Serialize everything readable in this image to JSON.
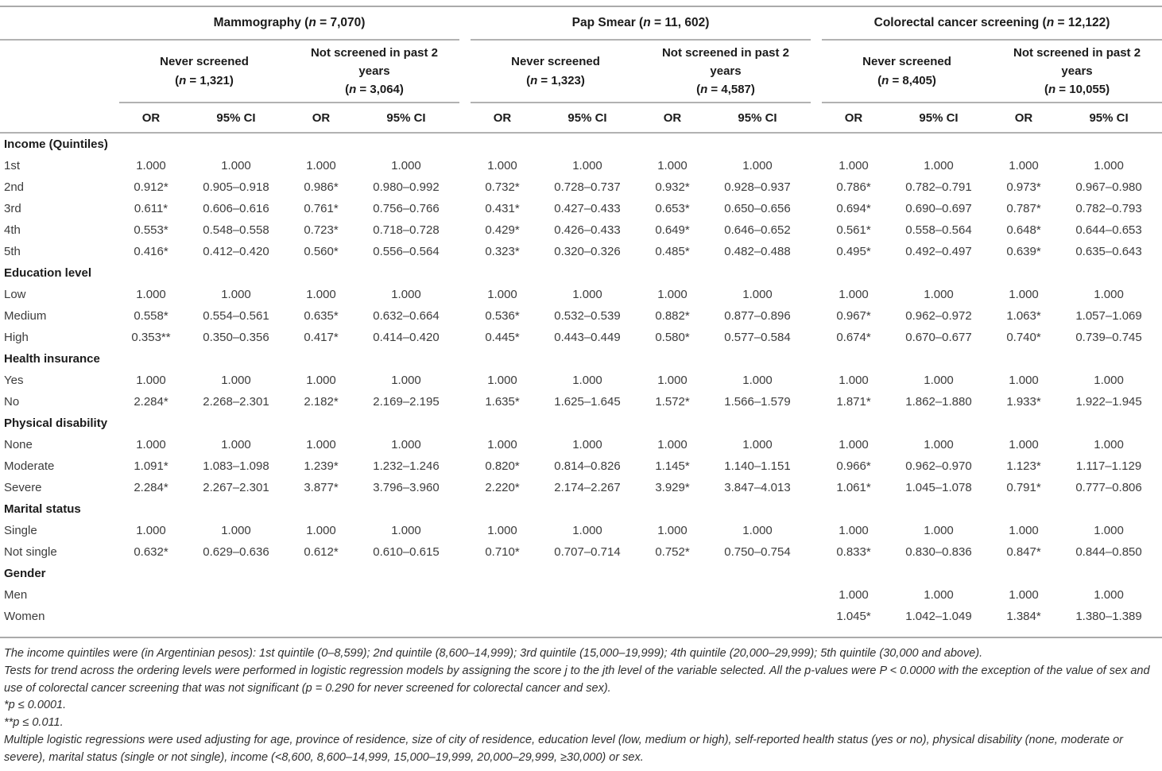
{
  "table": {
    "groups": [
      {
        "title": "Mammography (n = 7,070)",
        "subgroups": [
          {
            "title": "Never screened\n(n = 1,321)"
          },
          {
            "title": "Not screened in past 2\nyears\n(n = 3,064)"
          }
        ]
      },
      {
        "title": "Pap Smear (n = 11, 602)",
        "subgroups": [
          {
            "title": "Never screened\n(n = 1,323)"
          },
          {
            "title": "Not screened in past 2\nyears\n(n = 4,587)"
          }
        ]
      },
      {
        "title": "Colorectal cancer screening (n = 12,122)",
        "subgroups": [
          {
            "title": "Never screened\n(n = 8,405)"
          },
          {
            "title": "Not screened in past 2\nyears\n(n = 10,055)"
          }
        ]
      }
    ],
    "col_labels": {
      "or": "OR",
      "ci": "95% CI"
    },
    "sections": [
      {
        "header": "Income (Quintiles)",
        "rows": [
          {
            "label": "1st",
            "values": [
              "1.000",
              "1.000",
              "1.000",
              "1.000",
              "1.000",
              "1.000",
              "1.000",
              "1.000",
              "1.000",
              "1.000",
              "1.000",
              "1.000"
            ]
          },
          {
            "label": "2nd",
            "values": [
              "0.912*",
              "0.905–0.918",
              "0.986*",
              "0.980–0.992",
              "0.732*",
              "0.728–0.737",
              "0.932*",
              "0.928–0.937",
              "0.786*",
              "0.782–0.791",
              "0.973*",
              "0.967–0.980"
            ]
          },
          {
            "label": "3rd",
            "values": [
              "0.611*",
              "0.606–0.616",
              "0.761*",
              "0.756–0.766",
              "0.431*",
              "0.427–0.433",
              "0.653*",
              "0.650–0.656",
              "0.694*",
              "0.690–0.697",
              "0.787*",
              "0.782–0.793"
            ]
          },
          {
            "label": "4th",
            "values": [
              "0.553*",
              "0.548–0.558",
              "0.723*",
              "0.718–0.728",
              "0.429*",
              "0.426–0.433",
              "0.649*",
              "0.646–0.652",
              "0.561*",
              "0.558–0.564",
              "0.648*",
              "0.644–0.653"
            ]
          },
          {
            "label": "5th",
            "values": [
              "0.416*",
              "0.412–0.420",
              "0.560*",
              "0.556–0.564",
              "0.323*",
              "0.320–0.326",
              "0.485*",
              "0.482–0.488",
              "0.495*",
              "0.492–0.497",
              "0.639*",
              "0.635–0.643"
            ]
          }
        ]
      },
      {
        "header": "Education level",
        "rows": [
          {
            "label": "Low",
            "values": [
              "1.000",
              "1.000",
              "1.000",
              "1.000",
              "1.000",
              "1.000",
              "1.000",
              "1.000",
              "1.000",
              "1.000",
              "1.000",
              "1.000"
            ]
          },
          {
            "label": "Medium",
            "values": [
              "0.558*",
              "0.554–0.561",
              "0.635*",
              "0.632–0.664",
              "0.536*",
              "0.532–0.539",
              "0.882*",
              "0.877–0.896",
              "0.967*",
              "0.962–0.972",
              "1.063*",
              "1.057–1.069"
            ]
          },
          {
            "label": "High",
            "values": [
              "0.353**",
              "0.350–0.356",
              "0.417*",
              "0.414–0.420",
              "0.445*",
              "0.443–0.449",
              "0.580*",
              "0.577–0.584",
              "0.674*",
              "0.670–0.677",
              "0.740*",
              "0.739–0.745"
            ]
          }
        ]
      },
      {
        "header": "Health insurance",
        "rows": [
          {
            "label": "Yes",
            "values": [
              "1.000",
              "1.000",
              "1.000",
              "1.000",
              "1.000",
              "1.000",
              "1.000",
              "1.000",
              "1.000",
              "1.000",
              "1.000",
              "1.000"
            ]
          },
          {
            "label": "No",
            "values": [
              "2.284*",
              "2.268–2.301",
              "2.182*",
              "2.169–2.195",
              "1.635*",
              "1.625–1.645",
              "1.572*",
              "1.566–1.579",
              "1.871*",
              "1.862–1.880",
              "1.933*",
              "1.922–1.945"
            ]
          }
        ]
      },
      {
        "header": "Physical disability",
        "rows": [
          {
            "label": "None",
            "values": [
              "1.000",
              "1.000",
              "1.000",
              "1.000",
              "1.000",
              "1.000",
              "1.000",
              "1.000",
              "1.000",
              "1.000",
              "1.000",
              "1.000"
            ]
          },
          {
            "label": "Moderate",
            "values": [
              "1.091*",
              "1.083–1.098",
              "1.239*",
              "1.232–1.246",
              "0.820*",
              "0.814–0.826",
              "1.145*",
              "1.140–1.151",
              "0.966*",
              "0.962–0.970",
              "1.123*",
              "1.117–1.129"
            ]
          },
          {
            "label": "Severe",
            "values": [
              "2.284*",
              "2.267–2.301",
              "3.877*",
              "3.796–3.960",
              "2.220*",
              "2.174–2.267",
              "3.929*",
              "3.847–4.013",
              "1.061*",
              "1.045–1.078",
              "0.791*",
              "0.777–0.806"
            ]
          }
        ]
      },
      {
        "header": "Marital status",
        "rows": [
          {
            "label": "Single",
            "values": [
              "1.000",
              "1.000",
              "1.000",
              "1.000",
              "1.000",
              "1.000",
              "1.000",
              "1.000",
              "1.000",
              "1.000",
              "1.000",
              "1.000"
            ]
          },
          {
            "label": "Not single",
            "values": [
              "0.632*",
              "0.629–0.636",
              "0.612*",
              "0.610–0.615",
              "0.710*",
              "0.707–0.714",
              "0.752*",
              "0.750–0.754",
              "0.833*",
              "0.830–0.836",
              "0.847*",
              "0.844–0.850"
            ]
          }
        ]
      },
      {
        "header": "Gender",
        "rows": [
          {
            "label": "Men",
            "values": [
              "",
              "",
              "",
              "",
              "",
              "",
              "",
              "",
              "1.000",
              "1.000",
              "1.000",
              "1.000"
            ]
          },
          {
            "label": "Women",
            "values": [
              "",
              "",
              "",
              "",
              "",
              "",
              "",
              "",
              "1.045*",
              "1.042–1.049",
              "1.384*",
              "1.380–1.389"
            ]
          }
        ]
      }
    ]
  },
  "footnotes": [
    "The income quintiles were (in Argentinian pesos): 1st quintile (0–8,599); 2nd quintile (8,600–14,999); 3rd quintile (15,000–19,999); 4th quintile (20,000–29,999); 5th quintile (30,000 and above).",
    "Tests for trend across the ordering levels were performed in logistic regression models by assigning the score j to the jth level of the variable selected. All the p-values were P < 0.0000 with the exception of the value of sex and use of colorectal cancer screening that was not significant (p = 0.290 for never screened for colorectal cancer and sex).",
    "*p ≤ 0.0001.",
    "**p ≤ 0.011.",
    "Multiple logistic regressions were used adjusting for age, province of residence, size of city of residence, education level (low, medium or high), self-reported health status (yes or no), physical disability (none, moderate or severe), marital status (single or not single), income (<8,600, 8,600–14,999, 15,000–19,999, 20,000–29,999, ≥30,000) or sex."
  ]
}
